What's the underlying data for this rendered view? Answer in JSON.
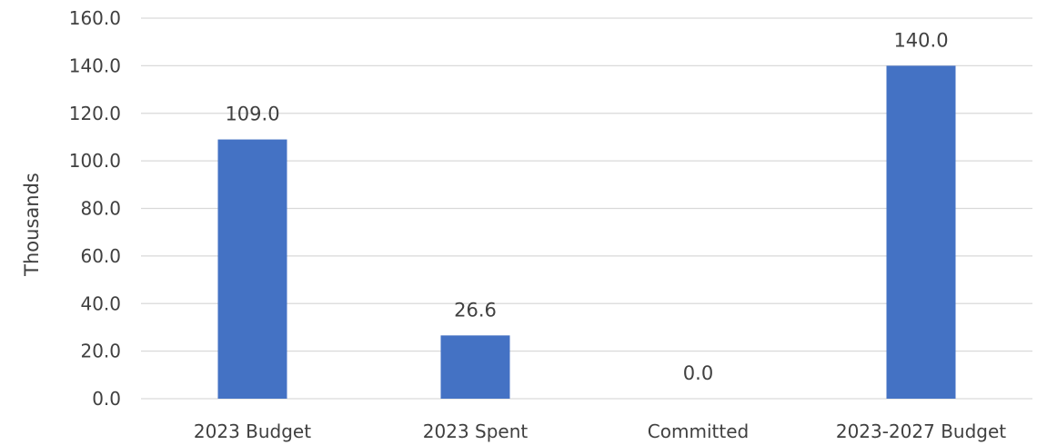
{
  "chart_data": {
    "type": "bar",
    "categories": [
      "2023 Budget",
      "2023 Spent",
      "Committed",
      "2023-2027 Budget"
    ],
    "values": [
      109.0,
      26.6,
      0.0,
      140.0
    ],
    "data_labels": [
      "109.0",
      "26.6",
      "0.0",
      "140.0"
    ],
    "title": "",
    "xlabel": "",
    "ylabel": "Thousands",
    "ylim": [
      0,
      160
    ],
    "yticks": [
      "0.0",
      "20.0",
      "40.0",
      "60.0",
      "80.0",
      "100.0",
      "120.0",
      "140.0",
      "160.0"
    ],
    "grid": true,
    "legend": "none",
    "bar_color": "#4472C4",
    "grid_color": "#D9D9D9",
    "text_color": "#404040"
  }
}
